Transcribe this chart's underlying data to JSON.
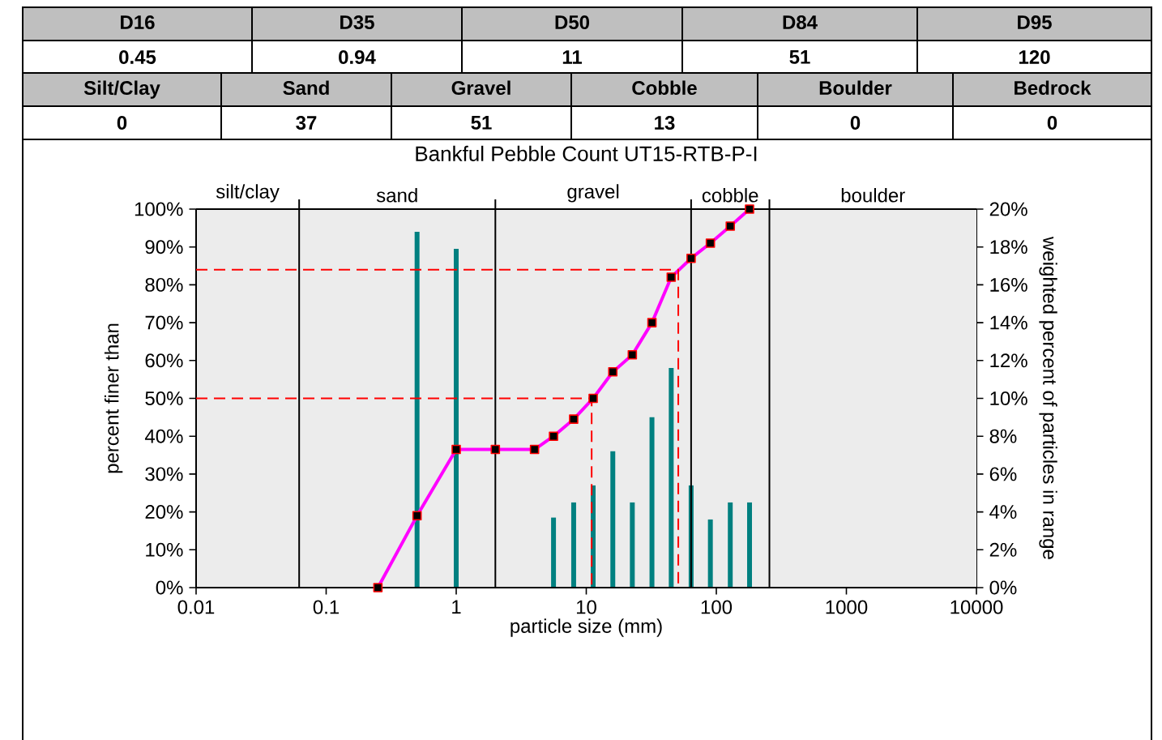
{
  "chart_data": [
    {
      "type": "other",
      "categories": [
        "D16",
        "D35",
        "D50",
        "D84",
        "D95"
      ],
      "values": [
        0.45,
        0.94,
        11,
        51,
        120
      ],
      "data_labels": true
    },
    {
      "type": "other",
      "categories": [
        "Silt/Clay",
        "Sand",
        "Gravel",
        "Cobble",
        "Boulder",
        "Bedrock"
      ],
      "values": [
        0,
        37,
        51,
        13,
        0,
        0
      ],
      "data_labels": true
    },
    {
      "type": "line",
      "title": "Bankful Pebble Count UT15-RTB-P-I",
      "xlabel": "particle size (mm)",
      "ylabel": "percent finer than",
      "y2label": "weighted percent of particles in range",
      "log": "x",
      "xlim": [
        0.01,
        10000
      ],
      "xticks": [
        0.01,
        0.1,
        1,
        10,
        100,
        1000,
        10000
      ],
      "ylim": [
        0,
        100
      ],
      "yticks": [
        {
          "value": 0,
          "label": "0%"
        },
        {
          "value": 10,
          "label": "10%"
        },
        {
          "value": 20,
          "label": "20%"
        },
        {
          "value": 30,
          "label": "30%"
        },
        {
          "value": 40,
          "label": "40%"
        },
        {
          "value": 50,
          "label": "50%"
        },
        {
          "value": 60,
          "label": "60%"
        },
        {
          "value": 70,
          "label": "70%"
        },
        {
          "value": 80,
          "label": "80%"
        },
        {
          "value": 90,
          "label": "90%"
        },
        {
          "value": 100,
          "label": "100%"
        }
      ],
      "y2lim": [
        0,
        20
      ],
      "y2ticks": [
        {
          "value": 0,
          "label": "0%"
        },
        {
          "value": 2,
          "label": "2%"
        },
        {
          "value": 4,
          "label": "4%"
        },
        {
          "value": 6,
          "label": "6%"
        },
        {
          "value": 8,
          "label": "8%"
        },
        {
          "value": 10,
          "label": "10%"
        },
        {
          "value": 12,
          "label": "12%"
        },
        {
          "value": 14,
          "label": "14%"
        },
        {
          "value": 16,
          "label": "16%"
        },
        {
          "value": 18,
          "label": "18%"
        },
        {
          "value": 20,
          "label": "20%"
        }
      ],
      "bands": [
        {
          "axis": "x",
          "from": 0.01,
          "to": 0.062,
          "label": "silt/clay",
          "color": "#ececec"
        },
        {
          "axis": "x",
          "from": 0.062,
          "to": 2,
          "label": "sand",
          "color": "#ececec"
        },
        {
          "axis": "x",
          "from": 2,
          "to": 64,
          "label": "gravel",
          "color": "#ececec"
        },
        {
          "axis": "x",
          "from": 64,
          "to": 256,
          "label": "cobble",
          "color": "#ececec"
        },
        {
          "axis": "x",
          "from": 256,
          "to": 10000,
          "label": "boulder",
          "color": "#ececec"
        }
      ],
      "ref_lines": [
        {
          "axis": "x",
          "value": 0.062,
          "color": "#000000"
        },
        {
          "axis": "x",
          "value": 2,
          "color": "#000000"
        },
        {
          "axis": "x",
          "value": 64,
          "color": "#000000"
        },
        {
          "axis": "x",
          "value": 256,
          "color": "#000000"
        }
      ],
      "series": [
        {
          "type": "bar",
          "axis": "y2",
          "color": "#008080",
          "x": [
            0.062,
            0.125,
            0.25,
            0.5,
            1,
            2,
            4,
            5.6,
            8,
            11.3,
            16,
            22.6,
            32,
            45,
            64,
            90,
            128,
            180,
            256,
            362,
            512,
            1024,
            2048
          ],
          "values": [
            0,
            0,
            0,
            18.8,
            17.9,
            0,
            0,
            3.7,
            4.5,
            5.4,
            7.2,
            4.5,
            9.0,
            11.6,
            5.4,
            3.6,
            4.5,
            4.5,
            0,
            0,
            0,
            0,
            0
          ]
        },
        {
          "type": "line",
          "color": "#ff00ff",
          "marker": "square",
          "x": [
            0.25,
            0.5,
            1,
            2,
            4,
            5.6,
            8,
            11.3,
            16,
            22.6,
            32,
            45,
            64,
            90,
            128,
            180
          ],
          "values": [
            0,
            19,
            36.5,
            36.5,
            36.5,
            40,
            44.5,
            50,
            57,
            61.5,
            70,
            82,
            87,
            91,
            95.5,
            100
          ]
        },
        {
          "type": "line",
          "color": "#ff0000",
          "line_style": "dashed",
          "marker": "none",
          "x": [
            0.01,
            51,
            51
          ],
          "values": [
            84,
            84,
            0
          ]
        },
        {
          "type": "line",
          "color": "#ff0000",
          "line_style": "dashed",
          "marker": "none",
          "x": [
            0.01,
            11,
            11
          ],
          "values": [
            50,
            50,
            0
          ]
        }
      ]
    }
  ]
}
